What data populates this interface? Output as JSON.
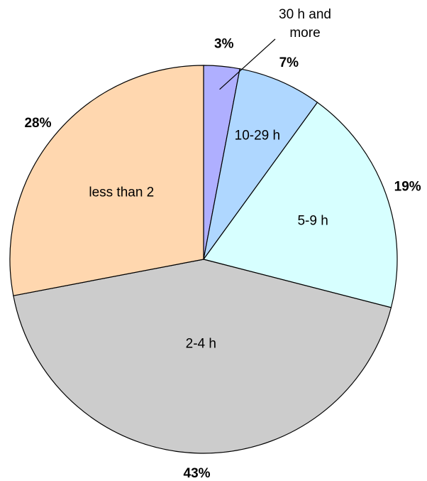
{
  "chart_data": {
    "type": "pie",
    "title": "",
    "start": "top, clockwise",
    "slices": [
      {
        "label": "30 h and more",
        "label_lines": [
          "30 h and",
          "more"
        ],
        "value": 3,
        "pct_label": "3%",
        "color": "#AFAFFF"
      },
      {
        "label": "10-29 h",
        "label_lines": [
          "10-29 h"
        ],
        "value": 7,
        "pct_label": "7%",
        "color": "#AFD7FF"
      },
      {
        "label": "5-9 h",
        "label_lines": [
          "5-9 h"
        ],
        "value": 19,
        "pct_label": "19%",
        "color": "#D7FFFF"
      },
      {
        "label": "2-4 h",
        "label_lines": [
          "2-4 h"
        ],
        "value": 43,
        "pct_label": "43%",
        "color": "#CCCCCC"
      },
      {
        "label": "less than 2",
        "label_lines": [
          "less than 2"
        ],
        "value": 28,
        "pct_label": "28%",
        "color": "#FFD7AF"
      }
    ]
  }
}
